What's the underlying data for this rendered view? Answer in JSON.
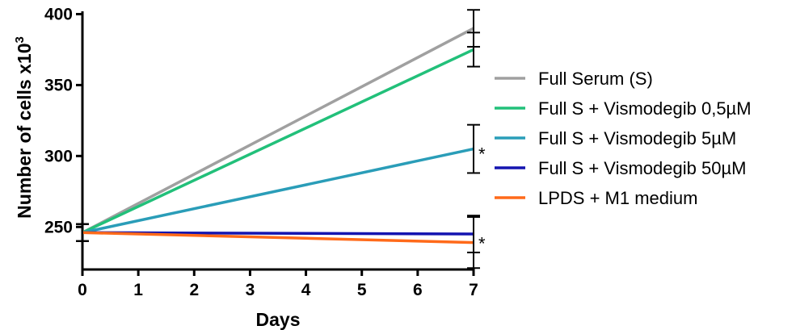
{
  "chart_data": {
    "type": "line",
    "xlabel": "Days",
    "ylabel_main": "Number of cells x10",
    "ylabel_exp": "3",
    "x_ticks": [
      "0",
      "1",
      "2",
      "3",
      "4",
      "5",
      "6",
      "7"
    ],
    "y_ticks": [
      "250",
      "300",
      "350",
      "400"
    ],
    "xlim": [
      0,
      7
    ],
    "ylim": [
      220,
      402
    ],
    "grid": false,
    "legend_position": "right",
    "x": [
      0,
      7
    ],
    "series": [
      {
        "name": "Full Serum (S)",
        "color": "#a0a0a0",
        "values": [
          246,
          390
        ],
        "error": [
          6,
          13
        ]
      },
      {
        "name": "Full S + Vismodegib 0,5µM",
        "color": "#22c07a",
        "values": [
          246,
          375
        ],
        "error": [
          6,
          12
        ]
      },
      {
        "name": "Full S + Vismodegib 5µM",
        "color": "#2a9db8",
        "values": [
          246,
          305
        ],
        "error": [
          6,
          17
        ]
      },
      {
        "name": "Full S + Vismodegib 50µM",
        "color": "#1414b0",
        "values": [
          246,
          245
        ],
        "error": [
          6,
          13
        ]
      },
      {
        "name": "LPDS + M1 medium",
        "color": "#ff6a1a",
        "values": [
          246,
          239
        ],
        "error": [
          6,
          18
        ]
      }
    ],
    "annotations": [
      {
        "text": "*",
        "x": 7,
        "y": 305
      },
      {
        "text": "*",
        "x": 7,
        "y": 242
      }
    ]
  }
}
